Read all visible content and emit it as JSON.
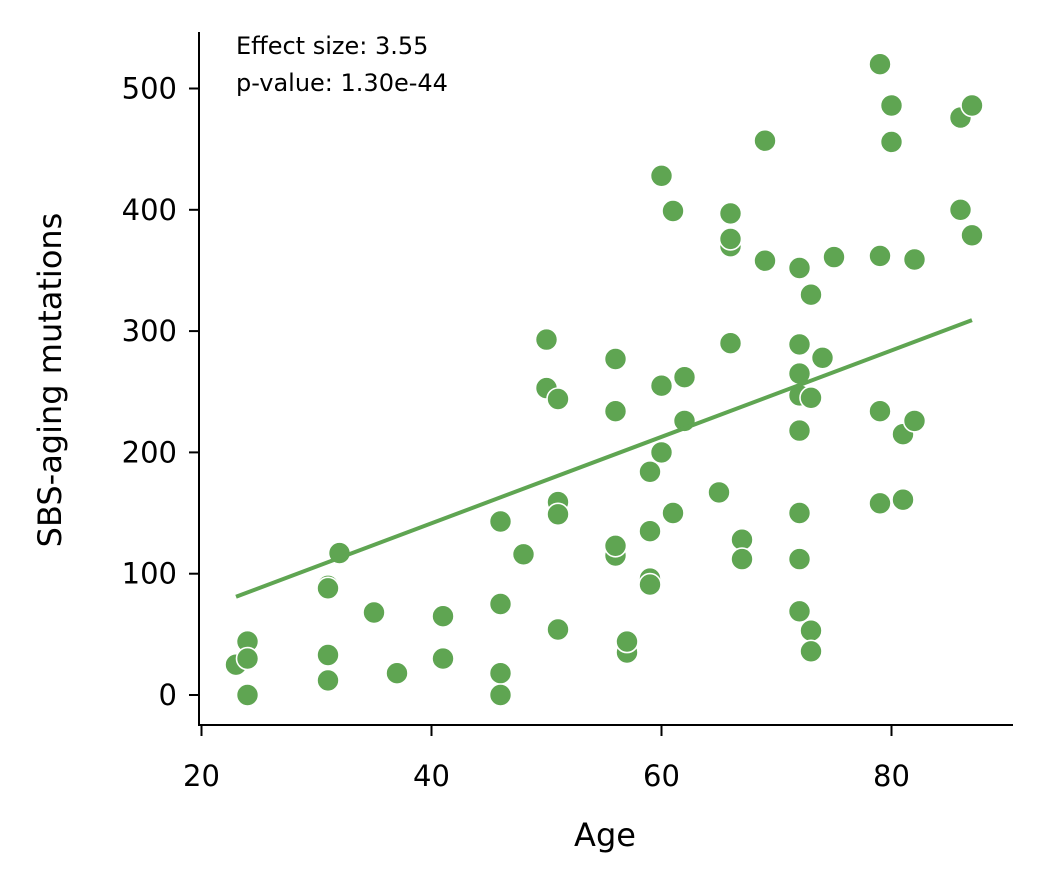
{
  "chart_data": {
    "type": "scatter",
    "title": "",
    "xlabel": "Age",
    "ylabel": "SBS-aging mutations",
    "xlim": [
      20,
      90
    ],
    "ylim": [
      -25,
      545
    ],
    "xticks": [
      20,
      40,
      60,
      80
    ],
    "yticks": [
      0,
      100,
      200,
      300,
      400,
      500
    ],
    "grid": false,
    "color": "#5fa552",
    "annotations": [
      "Effect size: 3.55",
      "p-value: 1.30e-44"
    ],
    "points": [
      [
        23,
        25
      ],
      [
        24,
        44
      ],
      [
        24,
        30
      ],
      [
        24,
        0
      ],
      [
        31,
        90
      ],
      [
        31,
        88
      ],
      [
        31,
        33
      ],
      [
        31,
        12
      ],
      [
        32,
        117
      ],
      [
        35,
        68
      ],
      [
        37,
        18
      ],
      [
        41,
        65
      ],
      [
        41,
        30
      ],
      [
        46,
        143
      ],
      [
        46,
        75
      ],
      [
        46,
        18
      ],
      [
        46,
        0
      ],
      [
        48,
        116
      ],
      [
        50,
        293
      ],
      [
        50,
        253
      ],
      [
        51,
        244
      ],
      [
        51,
        159
      ],
      [
        51,
        149
      ],
      [
        51,
        54
      ],
      [
        56,
        277
      ],
      [
        56,
        234
      ],
      [
        56,
        115
      ],
      [
        56,
        123
      ],
      [
        57,
        35
      ],
      [
        57,
        44
      ],
      [
        59,
        184
      ],
      [
        59,
        135
      ],
      [
        59,
        96
      ],
      [
        59,
        91
      ],
      [
        60,
        428
      ],
      [
        60,
        255
      ],
      [
        60,
        200
      ],
      [
        61,
        399
      ],
      [
        61,
        150
      ],
      [
        62,
        262
      ],
      [
        62,
        226
      ],
      [
        65,
        167
      ],
      [
        66,
        397
      ],
      [
        66,
        370
      ],
      [
        66,
        376
      ],
      [
        66,
        290
      ],
      [
        67,
        128
      ],
      [
        67,
        112
      ],
      [
        69,
        457
      ],
      [
        69,
        358
      ],
      [
        72,
        352
      ],
      [
        72,
        289
      ],
      [
        72,
        265
      ],
      [
        72,
        247
      ],
      [
        72,
        218
      ],
      [
        72,
        150
      ],
      [
        72,
        112
      ],
      [
        72,
        69
      ],
      [
        73,
        330
      ],
      [
        73,
        245
      ],
      [
        73,
        53
      ],
      [
        73,
        36
      ],
      [
        74,
        278
      ],
      [
        75,
        361
      ],
      [
        79,
        520
      ],
      [
        79,
        362
      ],
      [
        79,
        234
      ],
      [
        79,
        158
      ],
      [
        80,
        486
      ],
      [
        80,
        456
      ],
      [
        81,
        161
      ],
      [
        81,
        215
      ],
      [
        82,
        359
      ],
      [
        82,
        226
      ],
      [
        86,
        476
      ],
      [
        86,
        400
      ],
      [
        87,
        486
      ],
      [
        87,
        379
      ]
    ],
    "regression_line": {
      "x": [
        23,
        87
      ],
      "y": [
        81,
        309
      ]
    }
  }
}
